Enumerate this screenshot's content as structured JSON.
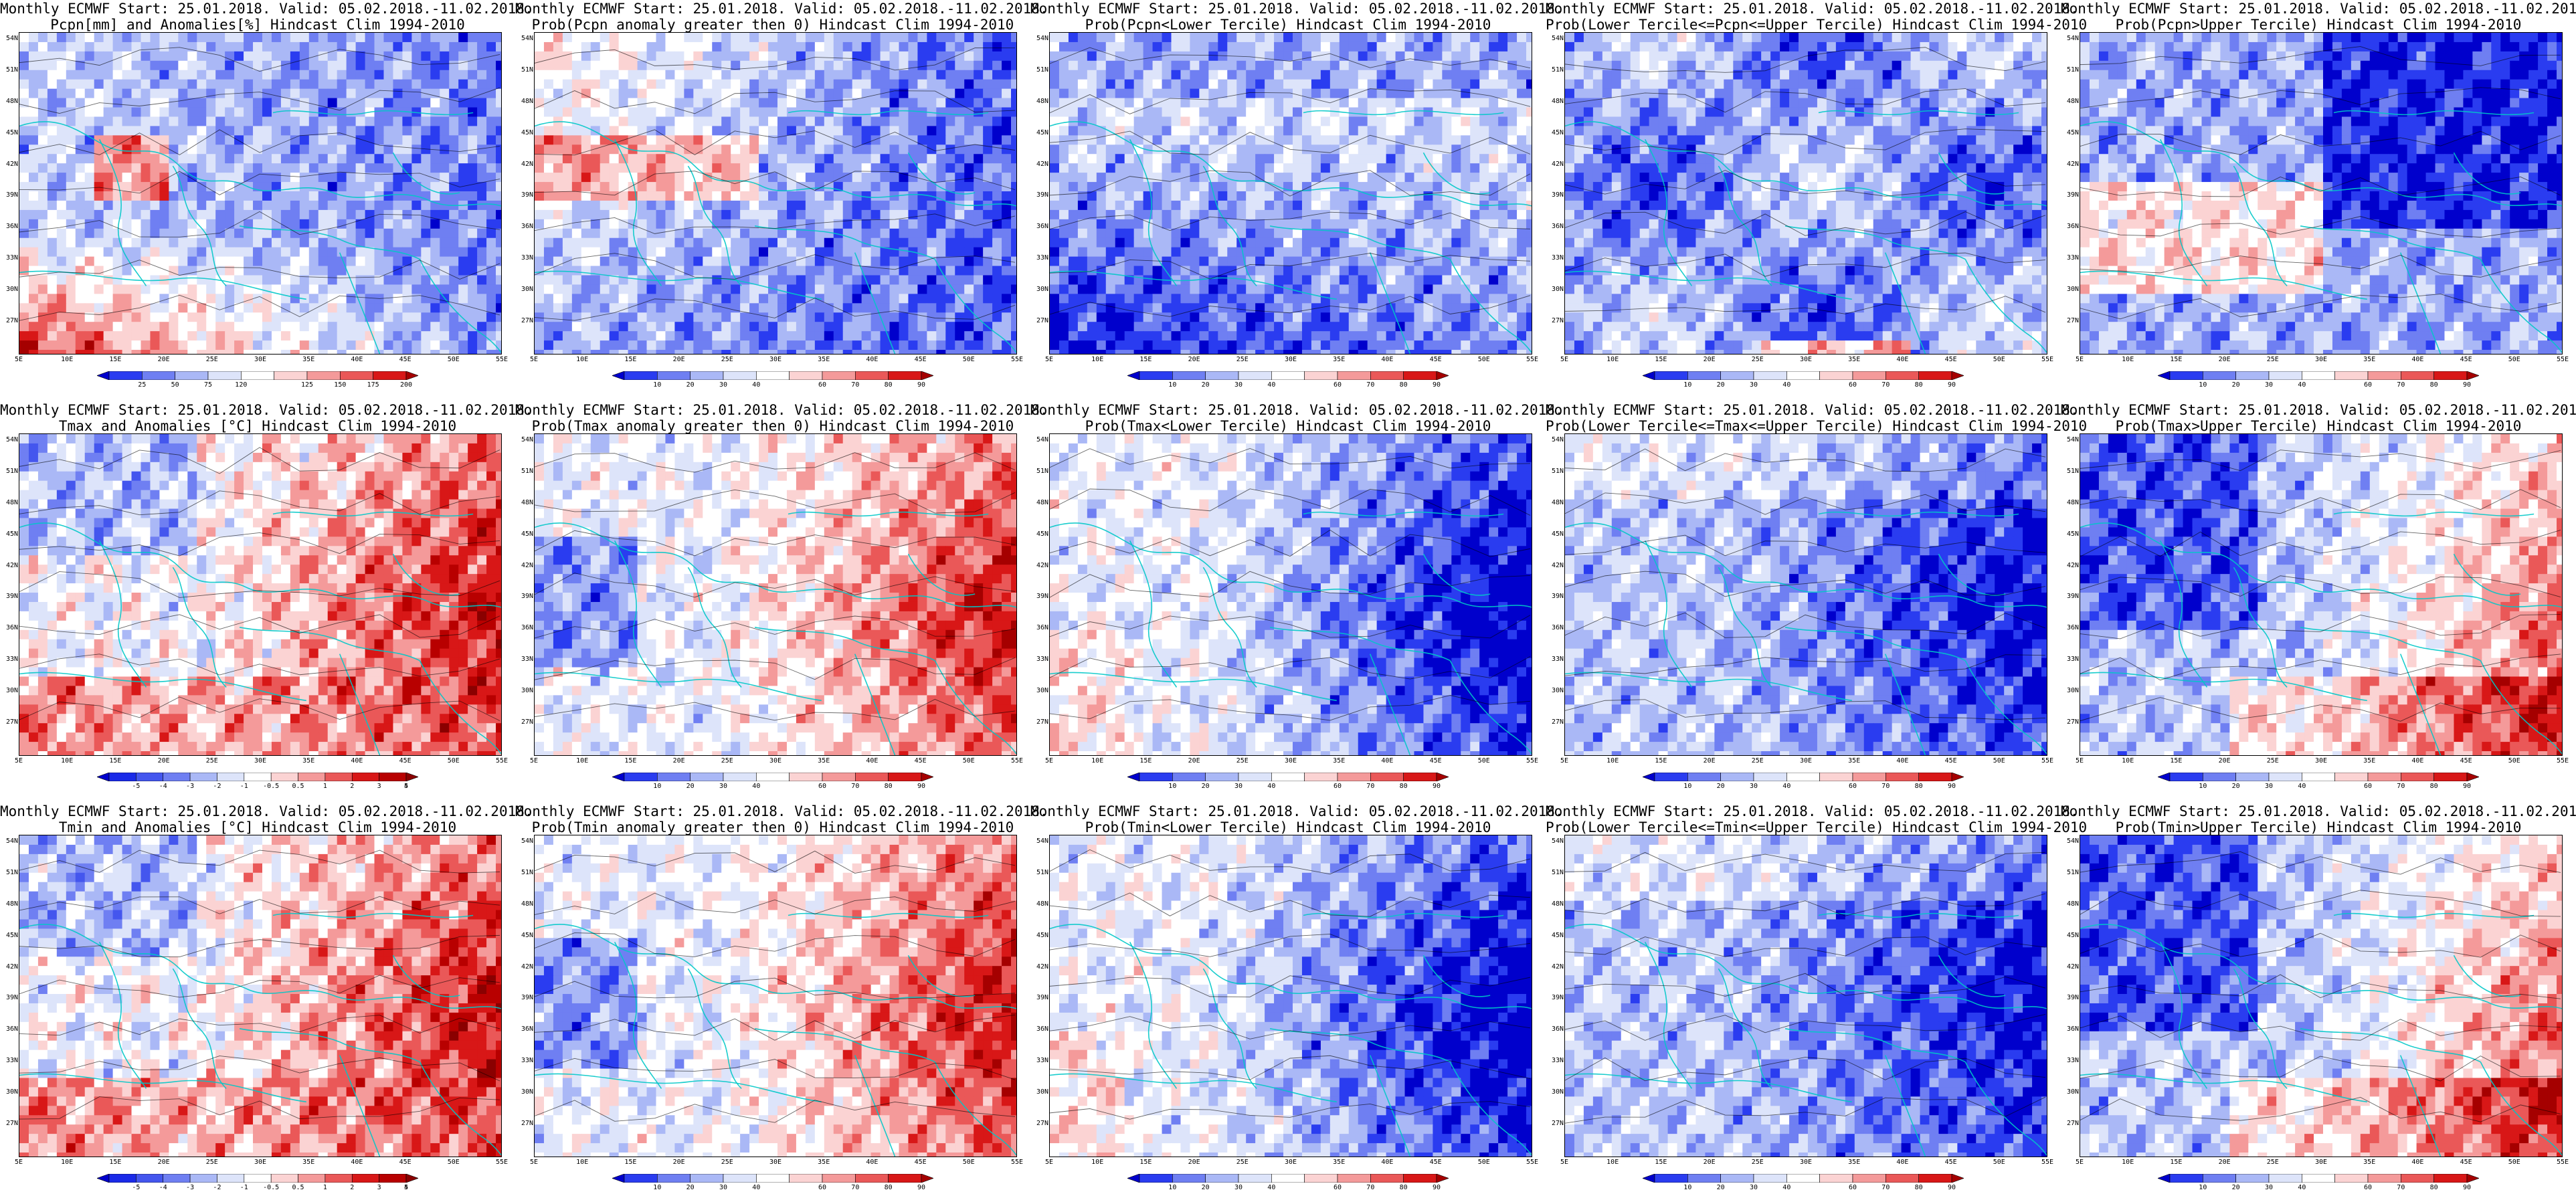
{
  "title_line1": "Monthly ECMWF Start: 25.01.2018. Valid: 05.02.2018.-11.02.2018.",
  "panels": [
    {
      "title2": "Pcpn[mm] and Anomalies[%] Hindcast Clim 1994-2010",
      "scale": "pcpn_anom",
      "pattern": "pcpn_anom"
    },
    {
      "title2": "Prob(Pcpn anomaly greater then 0) Hindcast Clim 1994-2010",
      "scale": "prob",
      "pattern": "pcpn_prob_pos"
    },
    {
      "title2": "Prob(Pcpn<Lower Tercile) Hindcast Clim 1994-2010",
      "scale": "prob",
      "pattern": "pcpn_prob_lower"
    },
    {
      "title2": "Prob(Lower Tercile<=Pcpn<=Upper Tercile) Hindcast Clim 1994-2010",
      "scale": "prob",
      "pattern": "pcpn_prob_mid"
    },
    {
      "title2": "Prob(Pcpn>Upper Tercile) Hindcast Clim 1994-2010",
      "scale": "prob",
      "pattern": "pcpn_prob_upper"
    },
    {
      "title2": "Tmax and Anomalies [°C] Hindcast Clim 1994-2010",
      "scale": "temp_anom",
      "pattern": "tmax_anom"
    },
    {
      "title2": "Prob(Tmax anomaly greater then 0) Hindcast Clim 1994-2010",
      "scale": "prob",
      "pattern": "tmax_prob_pos"
    },
    {
      "title2": "Prob(Tmax<Lower Tercile) Hindcast Clim 1994-2010",
      "scale": "prob",
      "pattern": "tmax_prob_lower"
    },
    {
      "title2": "Prob(Lower Tercile<=Tmax<=Upper Tercile) Hindcast Clim 1994-2010",
      "scale": "prob",
      "pattern": "tmax_prob_mid"
    },
    {
      "title2": "Prob(Tmax>Upper Tercile) Hindcast Clim 1994-2010",
      "scale": "prob",
      "pattern": "tmax_prob_upper"
    },
    {
      "title2": "Tmin and Anomalies [°C] Hindcast Clim 1994-2010",
      "scale": "temp_anom",
      "pattern": "tmin_anom"
    },
    {
      "title2": "Prob(Tmin anomaly greater then 0) Hindcast Clim 1994-2010",
      "scale": "prob",
      "pattern": "tmin_prob_pos"
    },
    {
      "title2": "Prob(Tmin<Lower Tercile) Hindcast Clim 1994-2010",
      "scale": "prob",
      "pattern": "tmin_prob_lower"
    },
    {
      "title2": "Prob(Lower Tercile<=Tmin<=Upper Tercile) Hindcast Clim 1994-2010",
      "scale": "prob",
      "pattern": "tmin_prob_mid"
    },
    {
      "title2": "Prob(Tmin>Upper Tercile) Hindcast Clim 1994-2010",
      "scale": "prob",
      "pattern": "tmin_prob_upper"
    }
  ],
  "lat_labels": [
    "54N",
    "51N",
    "48N",
    "45N",
    "42N",
    "39N",
    "36N",
    "33N",
    "30N",
    "27N"
  ],
  "lon_labels": [
    "5E",
    "10E",
    "15E",
    "20E",
    "25E",
    "30E",
    "35E",
    "40E",
    "45E",
    "50E",
    "55E"
  ],
  "lat_range": [
    25,
    55
  ],
  "lon_range": [
    5,
    55
  ],
  "scales": {
    "pcpn_anom": {
      "labels": [
        "25",
        "50",
        "75",
        "120",
        "125",
        "150",
        "175",
        "200"
      ],
      "colors": [
        "#0000cc",
        "#2a3cf0",
        "#6f7ff2",
        "#aab8f6",
        "#dde4fa",
        "#ffffff",
        "#fbd3d3",
        "#f49a9a",
        "#ea5858",
        "#d81717",
        "#a50000"
      ]
    },
    "prob": {
      "labels": [
        "10",
        "20",
        "30",
        "40",
        "60",
        "70",
        "80",
        "90"
      ],
      "colors": [
        "#0000cc",
        "#2a3cf0",
        "#6f7ff2",
        "#aab8f6",
        "#dde4fa",
        "#ffffff",
        "#fbd3d3",
        "#f49a9a",
        "#ea5858",
        "#d81717",
        "#a50000"
      ]
    },
    "temp_anom": {
      "labels": [
        "-5",
        "-4",
        "-3",
        "-2",
        "-1",
        "-0.5",
        "0.5",
        "1",
        "2",
        "3",
        "4",
        "5"
      ],
      "colors": [
        "#0000cc",
        "#1a2ae8",
        "#4456ee",
        "#6f7ff2",
        "#aab8f6",
        "#dde4fa",
        "#ffffff",
        "#fbd3d3",
        "#f49a9a",
        "#ea5858",
        "#d81717",
        "#b80000",
        "#8a0000"
      ]
    }
  },
  "colors": {
    "coast": "#00c8c8",
    "contour": "#000000",
    "frame": "#000000"
  }
}
